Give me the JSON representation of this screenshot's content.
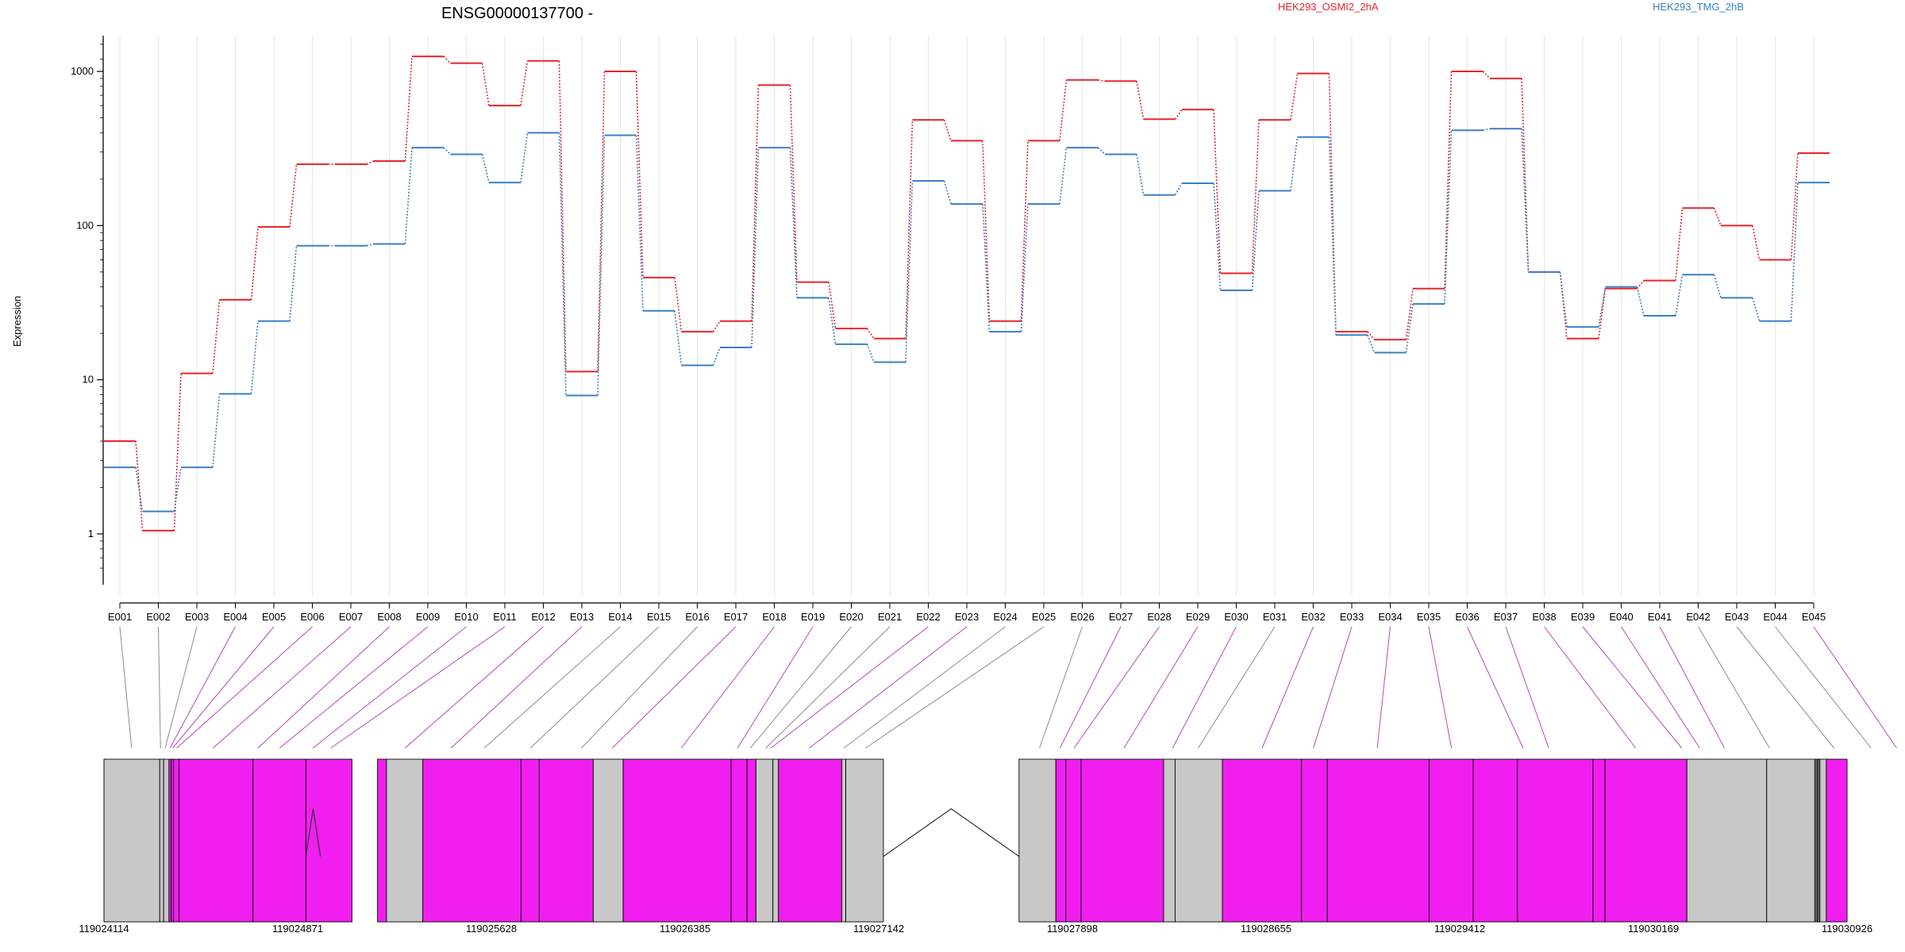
{
  "chart_data": {
    "type": "line",
    "title": "ENSG00000137700 -",
    "ylabel": "Expression",
    "y_scale": "log",
    "ylim": [
      0.5,
      1800
    ],
    "y_ticks": [
      1,
      10,
      100,
      1000
    ],
    "y_tick_labels": [
      "1",
      "10",
      "100",
      "1000"
    ],
    "categories": [
      "E001",
      "E002",
      "E003",
      "E004",
      "E005",
      "E006",
      "E007",
      "E008",
      "E009",
      "E010",
      "E011",
      "E012",
      "E013",
      "E014",
      "E015",
      "E016",
      "E017",
      "E018",
      "E019",
      "E020",
      "E021",
      "E022",
      "E023",
      "E024",
      "E025",
      "E026",
      "E027",
      "E028",
      "E029",
      "E030",
      "E031",
      "E032",
      "E033",
      "E034",
      "E035",
      "E036",
      "E037",
      "E038",
      "E039",
      "E040",
      "E041",
      "E042",
      "E043",
      "E044",
      "E045"
    ],
    "series": [
      {
        "name": "HEK293_OSMI2_2hA",
        "color": "#e8252b",
        "values": [
          4.0,
          1.05,
          11,
          33,
          98,
          250,
          250,
          262,
          1250,
          1130,
          600,
          1170,
          11.3,
          1000,
          46,
          20.5,
          24,
          815,
          43,
          21.5,
          18.5,
          485,
          355,
          24,
          355,
          880,
          865,
          490,
          565,
          49,
          485,
          970,
          20.5,
          18.2,
          39,
          1000,
          900,
          50,
          18.5,
          39,
          44,
          130,
          100,
          60,
          295
        ]
      },
      {
        "name": "HEK293_TMG_2hB",
        "color": "#3b7fc4",
        "values": [
          2.7,
          1.4,
          2.7,
          8.1,
          24,
          74,
          74,
          76,
          320,
          290,
          190,
          400,
          7.9,
          385,
          28,
          12.4,
          16.2,
          320,
          34,
          17,
          13,
          195,
          138,
          20.5,
          138,
          320,
          290,
          158,
          188,
          38,
          168,
          375,
          19.5,
          15,
          31,
          415,
          425,
          50,
          22,
          40,
          26,
          48,
          34,
          24,
          190
        ]
      }
    ],
    "genomic_axis_labels": [
      "119024114",
      "119024871",
      "119025628",
      "119026385",
      "119027142",
      "119027898",
      "119028655",
      "119029412",
      "119030169",
      "119030926"
    ],
    "genome_range": [
      119024114,
      119030926
    ],
    "exon_colors": {
      "significant": "#f01ff0",
      "nonsignificant": "#c8c8c8"
    },
    "exons": [
      {
        "id": "E001",
        "start": 119024114,
        "end": 119024332,
        "sig": false
      },
      {
        "id": "E002",
        "start": 119024332,
        "end": 119024347,
        "sig": false
      },
      {
        "id": "E003",
        "start": 119024347,
        "end": 119024368,
        "sig": false
      },
      {
        "id": "E004",
        "start": 119024368,
        "end": 119024377,
        "sig": true
      },
      {
        "id": "E005",
        "start": 119024377,
        "end": 119024386,
        "sig": true
      },
      {
        "id": "E006",
        "start": 119024386,
        "end": 119024407,
        "sig": true
      },
      {
        "id": "E007",
        "start": 119024407,
        "end": 119024696,
        "sig": true
      },
      {
        "id": "E008",
        "start": 119024696,
        "end": 119024903,
        "sig": true
      },
      {
        "id": "E009",
        "start": 119024903,
        "end": 119025083,
        "sig": true
      },
      {
        "id": "E010",
        "start": 119025183,
        "end": 119025218,
        "sig": true
      },
      {
        "id": "E011",
        "start": 119025218,
        "end": 119025360,
        "sig": false
      },
      {
        "id": "E012",
        "start": 119025360,
        "end": 119025744,
        "sig": true
      },
      {
        "id": "E013",
        "start": 119025744,
        "end": 119025815,
        "sig": true
      },
      {
        "id": "E014",
        "start": 119025815,
        "end": 119026026,
        "sig": true
      },
      {
        "id": "E015",
        "start": 119026026,
        "end": 119026143,
        "sig": false
      },
      {
        "id": "E016",
        "start": 119026143,
        "end": 119026565,
        "sig": true
      },
      {
        "id": "E017",
        "start": 119026565,
        "end": 119026627,
        "sig": true
      },
      {
        "id": "E018",
        "start": 119026627,
        "end": 119026662,
        "sig": true
      },
      {
        "id": "E019",
        "start": 119026662,
        "end": 119026728,
        "sig": false
      },
      {
        "id": "E020",
        "start": 119026728,
        "end": 119026750,
        "sig": false
      },
      {
        "id": "E021",
        "start": 119026750,
        "end": 119026997,
        "sig": true
      },
      {
        "id": "E022",
        "start": 119026997,
        "end": 119027013,
        "sig": false
      },
      {
        "id": "E023",
        "start": 119027013,
        "end": 119027160,
        "sig": false
      },
      {
        "id": "E024",
        "start": 119027690,
        "end": 119027834,
        "sig": false
      },
      {
        "id": "E025",
        "start": 119027834,
        "end": 119027873,
        "sig": true
      },
      {
        "id": "E026",
        "start": 119027873,
        "end": 119027933,
        "sig": true
      },
      {
        "id": "E027",
        "start": 119027933,
        "end": 119028255,
        "sig": true
      },
      {
        "id": "E028",
        "start": 119028255,
        "end": 119028300,
        "sig": false
      },
      {
        "id": "E029",
        "start": 119028300,
        "end": 119028485,
        "sig": false
      },
      {
        "id": "E030",
        "start": 119028485,
        "end": 119028794,
        "sig": true
      },
      {
        "id": "E031",
        "start": 119028794,
        "end": 119028895,
        "sig": true
      },
      {
        "id": "E032",
        "start": 119028895,
        "end": 119029293,
        "sig": true
      },
      {
        "id": "E033",
        "start": 119029293,
        "end": 119029465,
        "sig": true
      },
      {
        "id": "E034",
        "start": 119029465,
        "end": 119029638,
        "sig": true
      },
      {
        "id": "E035",
        "start": 119029638,
        "end": 119029933,
        "sig": true
      },
      {
        "id": "E036",
        "start": 119029933,
        "end": 119029980,
        "sig": true
      },
      {
        "id": "E037",
        "start": 119029980,
        "end": 119030300,
        "sig": true
      },
      {
        "id": "E038",
        "start": 119030300,
        "end": 119030612,
        "sig": false
      },
      {
        "id": "E039",
        "start": 119030612,
        "end": 119030800,
        "sig": false
      },
      {
        "id": "E040",
        "start": 119030800,
        "end": 119030805,
        "sig": false
      },
      {
        "id": "E041",
        "start": 119030805,
        "end": 119030810,
        "sig": false
      },
      {
        "id": "E042",
        "start": 119030810,
        "end": 119030815,
        "sig": false
      },
      {
        "id": "E043",
        "start": 119030815,
        "end": 119030820,
        "sig": false
      },
      {
        "id": "E044",
        "start": 119030820,
        "end": 119030845,
        "sig": false
      },
      {
        "id": "E045",
        "start": 119030845,
        "end": 119030926,
        "sig": true
      }
    ],
    "exon_targets": [
      119024222,
      119024335,
      119024353,
      119024372,
      119024382,
      119024398,
      119024540,
      119024715,
      119024800,
      119024930,
      119025000,
      119025290,
      119025470,
      119025600,
      119025780,
      119025980,
      119026100,
      119026370,
      119026590,
      119026640,
      119026700,
      119026720,
      119026870,
      119027005,
      119027090,
      119027770,
      119027850,
      119027905,
      119028100,
      119028290,
      119028390,
      119028640,
      119028840,
      119029090,
      119029380,
      119029660,
      119029760,
      119030100,
      119030280,
      119030350,
      119030447,
      119030623,
      119030875,
      119031020,
      119031120
    ],
    "exon_link_sig": [
      false,
      false,
      false,
      true,
      true,
      true,
      true,
      true,
      true,
      true,
      true,
      true,
      true,
      false,
      false,
      false,
      true,
      true,
      true,
      false,
      false,
      true,
      true,
      false,
      false,
      false,
      true,
      true,
      true,
      true,
      false,
      true,
      true,
      true,
      true,
      true,
      true,
      true,
      true,
      true,
      true,
      false,
      false,
      false,
      true
    ],
    "intron_gaps": [
      [
        119024903,
        119024960
      ],
      [
        119027160,
        119027690
      ]
    ]
  }
}
